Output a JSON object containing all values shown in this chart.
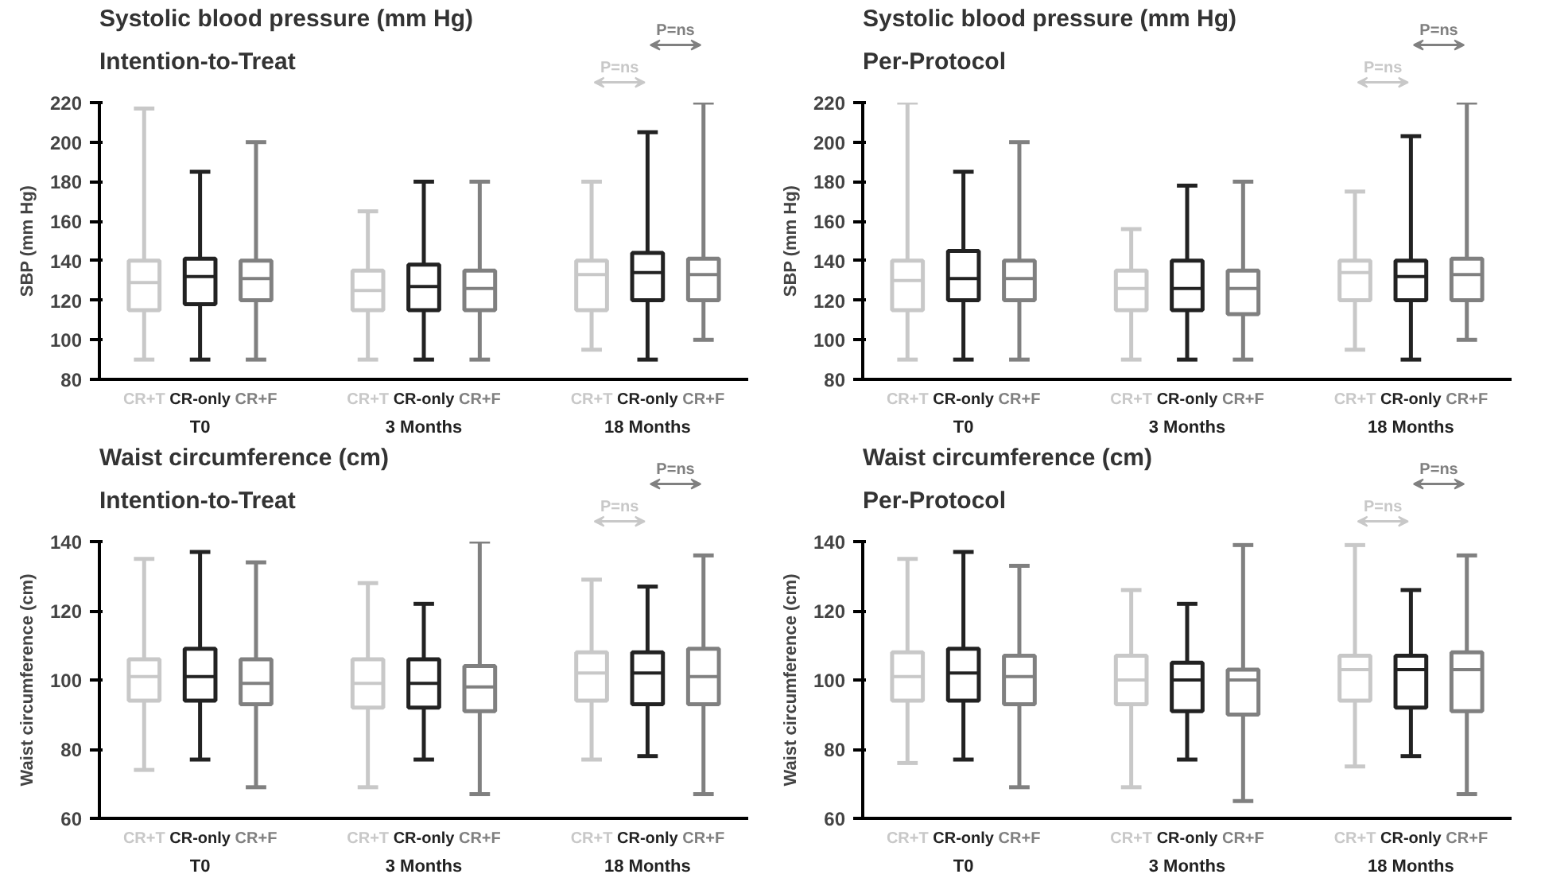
{
  "chart_data": [
    {
      "type": "box",
      "title": "Systolic blood pressure (mm Hg)",
      "subtitle": "Intention-to-Treat",
      "ylabel": "SBP (mm Hg)",
      "categories": [
        "T0",
        "3 Months",
        "18 Months"
      ],
      "ylim": [
        80,
        220
      ],
      "yticks": [
        80,
        100,
        120,
        140,
        160,
        180,
        200,
        220
      ],
      "grid": false,
      "legend": false,
      "annotations": [
        "P=ns",
        "P=ns"
      ],
      "series": [
        {
          "name": "CR+T",
          "color": "#c8c8c8",
          "boxes": [
            {
              "low": 90,
              "q1": 115,
              "median": 129,
              "q3": 140,
              "high": 217
            },
            {
              "low": 90,
              "q1": 115,
              "median": 125,
              "q3": 135,
              "high": 165
            },
            {
              "low": 95,
              "q1": 115,
              "median": 133,
              "q3": 140,
              "high": 180
            }
          ]
        },
        {
          "name": "CR-only",
          "color": "#222222",
          "boxes": [
            {
              "low": 90,
              "q1": 118,
              "median": 132,
              "q3": 141,
              "high": 185
            },
            {
              "low": 90,
              "q1": 115,
              "median": 127,
              "q3": 138,
              "high": 180
            },
            {
              "low": 90,
              "q1": 120,
              "median": 134,
              "q3": 144,
              "high": 205
            }
          ]
        },
        {
          "name": "CR+F",
          "color": "#808080",
          "boxes": [
            {
              "low": 90,
              "q1": 120,
              "median": 131,
              "q3": 140,
              "high": 200
            },
            {
              "low": 90,
              "q1": 115,
              "median": 126,
              "q3": 135,
              "high": 180
            },
            {
              "low": 100,
              "q1": 120,
              "median": 133,
              "q3": 141,
              "high": 220
            }
          ]
        }
      ]
    },
    {
      "type": "box",
      "title": "Systolic blood pressure (mm Hg)",
      "subtitle": "Per-Protocol",
      "ylabel": "SBP (mm Hg)",
      "categories": [
        "T0",
        "3 Months",
        "18 Months"
      ],
      "ylim": [
        80,
        220
      ],
      "yticks": [
        80,
        100,
        120,
        140,
        160,
        180,
        200,
        220
      ],
      "grid": false,
      "legend": false,
      "annotations": [
        "P=ns",
        "P=ns"
      ],
      "series": [
        {
          "name": "CR+T",
          "color": "#c8c8c8",
          "boxes": [
            {
              "low": 90,
              "q1": 115,
              "median": 130,
              "q3": 140,
              "high": 220
            },
            {
              "low": 90,
              "q1": 115,
              "median": 126,
              "q3": 135,
              "high": 156
            },
            {
              "low": 95,
              "q1": 120,
              "median": 134,
              "q3": 140,
              "high": 175
            }
          ]
        },
        {
          "name": "CR-only",
          "color": "#222222",
          "boxes": [
            {
              "low": 90,
              "q1": 120,
              "median": 131,
              "q3": 145,
              "high": 185
            },
            {
              "low": 90,
              "q1": 115,
              "median": 126,
              "q3": 140,
              "high": 178
            },
            {
              "low": 90,
              "q1": 120,
              "median": 132,
              "q3": 140,
              "high": 203
            }
          ]
        },
        {
          "name": "CR+F",
          "color": "#808080",
          "boxes": [
            {
              "low": 90,
              "q1": 120,
              "median": 131,
              "q3": 140,
              "high": 200
            },
            {
              "low": 90,
              "q1": 113,
              "median": 126,
              "q3": 135,
              "high": 180
            },
            {
              "low": 100,
              "q1": 120,
              "median": 133,
              "q3": 141,
              "high": 220
            }
          ]
        }
      ]
    },
    {
      "type": "box",
      "title": "Waist circumference (cm)",
      "subtitle": "Intention-to-Treat",
      "ylabel": "Waist circumference (cm)",
      "categories": [
        "T0",
        "3 Months",
        "18 Months"
      ],
      "ylim": [
        60,
        140
      ],
      "yticks": [
        60,
        80,
        100,
        120,
        140
      ],
      "grid": false,
      "legend": false,
      "annotations": [
        "P=ns",
        "P=ns"
      ],
      "series": [
        {
          "name": "CR+T",
          "color": "#c8c8c8",
          "boxes": [
            {
              "low": 74,
              "q1": 94,
              "median": 101,
              "q3": 106,
              "high": 135
            },
            {
              "low": 69,
              "q1": 92,
              "median": 99,
              "q3": 106,
              "high": 128
            },
            {
              "low": 77,
              "q1": 94,
              "median": 102,
              "q3": 108,
              "high": 129
            }
          ]
        },
        {
          "name": "CR-only",
          "color": "#222222",
          "boxes": [
            {
              "low": 77,
              "q1": 94,
              "median": 101,
              "q3": 109,
              "high": 137
            },
            {
              "low": 77,
              "q1": 92,
              "median": 99,
              "q3": 106,
              "high": 122
            },
            {
              "low": 78,
              "q1": 93,
              "median": 102,
              "q3": 108,
              "high": 127
            }
          ]
        },
        {
          "name": "CR+F",
          "color": "#808080",
          "boxes": [
            {
              "low": 69,
              "q1": 93,
              "median": 99,
              "q3": 106,
              "high": 134
            },
            {
              "low": 67,
              "q1": 91,
              "median": 98,
              "q3": 104,
              "high": 140
            },
            {
              "low": 67,
              "q1": 93,
              "median": 101,
              "q3": 109,
              "high": 136
            }
          ]
        }
      ]
    },
    {
      "type": "box",
      "title": "Waist circumference (cm)",
      "subtitle": "Per-Protocol",
      "ylabel": "Waist circumference (cm)",
      "categories": [
        "T0",
        "3 Months",
        "18 Months"
      ],
      "ylim": [
        60,
        140
      ],
      "yticks": [
        60,
        80,
        100,
        120,
        140
      ],
      "grid": false,
      "legend": false,
      "annotations": [
        "P=ns",
        "P=ns"
      ],
      "series": [
        {
          "name": "CR+T",
          "color": "#c8c8c8",
          "boxes": [
            {
              "low": 76,
              "q1": 94,
              "median": 101,
              "q3": 108,
              "high": 135
            },
            {
              "low": 69,
              "q1": 93,
              "median": 100,
              "q3": 107,
              "high": 126
            },
            {
              "low": 75,
              "q1": 94,
              "median": 103,
              "q3": 107,
              "high": 139
            }
          ]
        },
        {
          "name": "CR-only",
          "color": "#222222",
          "boxes": [
            {
              "low": 77,
              "q1": 94,
              "median": 102,
              "q3": 109,
              "high": 137
            },
            {
              "low": 77,
              "q1": 91,
              "median": 100,
              "q3": 105,
              "high": 122
            },
            {
              "low": 78,
              "q1": 92,
              "median": 103,
              "q3": 107,
              "high": 126
            }
          ]
        },
        {
          "name": "CR+F",
          "color": "#808080",
          "boxes": [
            {
              "low": 69,
              "q1": 93,
              "median": 101,
              "q3": 107,
              "high": 133
            },
            {
              "low": 65,
              "q1": 90,
              "median": 100,
              "q3": 103,
              "high": 139
            },
            {
              "low": 67,
              "q1": 91,
              "median": 103,
              "q3": 108,
              "high": 136
            }
          ]
        }
      ]
    }
  ]
}
